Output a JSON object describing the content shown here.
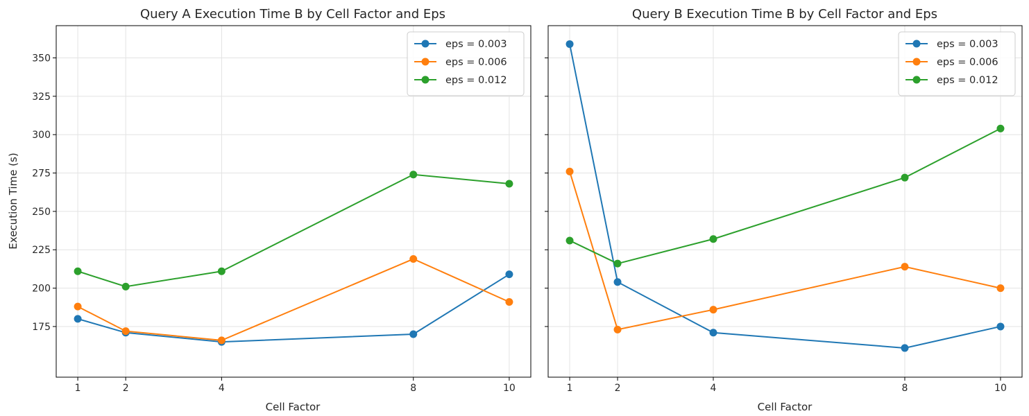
{
  "chart_data": [
    {
      "type": "line",
      "title": "Query A Execution Time B by Cell Factor and Eps",
      "xlabel": "Cell Factor",
      "ylabel": "Execution Time (s)",
      "x": [
        1,
        2,
        4,
        8,
        10
      ],
      "xticks": [
        "1",
        "2",
        "4",
        "8",
        "10"
      ],
      "ylim": [
        142,
        371
      ],
      "yticks": [
        "175",
        "200",
        "225",
        "250",
        "275",
        "300",
        "325",
        "350"
      ],
      "grid": true,
      "legend": "top-right",
      "series": [
        {
          "name": "eps = 0.003",
          "color": "#1f77b4",
          "values": [
            180,
            171,
            165,
            170,
            209
          ]
        },
        {
          "name": "eps = 0.006",
          "color": "#ff7f0e",
          "values": [
            188,
            172,
            166,
            219,
            191
          ]
        },
        {
          "name": "eps = 0.012",
          "color": "#2ca02c",
          "values": [
            211,
            201,
            211,
            274,
            268
          ]
        }
      ]
    },
    {
      "type": "line",
      "title": "Query B Execution Time B by Cell Factor and Eps",
      "xlabel": "Cell Factor",
      "ylabel": "",
      "x": [
        1,
        2,
        4,
        8,
        10
      ],
      "xticks": [
        "1",
        "2",
        "4",
        "8",
        "10"
      ],
      "ylim": [
        142,
        371
      ],
      "yticks": [],
      "grid": true,
      "legend": "top-right",
      "series": [
        {
          "name": "eps = 0.003",
          "color": "#1f77b4",
          "values": [
            359,
            204,
            171,
            161,
            175
          ]
        },
        {
          "name": "eps = 0.006",
          "color": "#ff7f0e",
          "values": [
            276,
            173,
            186,
            214,
            200
          ]
        },
        {
          "name": "eps = 0.012",
          "color": "#2ca02c",
          "values": [
            231,
            216,
            232,
            272,
            304
          ]
        }
      ]
    }
  ]
}
